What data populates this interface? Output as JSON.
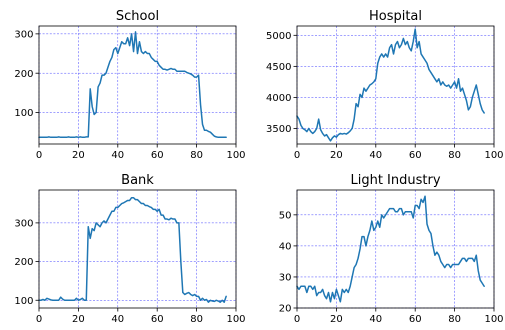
{
  "chart_data": [
    {
      "type": "line",
      "title": "School",
      "xlim": [
        0,
        100
      ],
      "ylim": [
        20,
        320
      ],
      "xticks": [
        0,
        20,
        40,
        60,
        80,
        100
      ],
      "yticks": [
        100,
        200,
        300
      ],
      "grid": true,
      "color": "#1f77b4",
      "x": [
        0,
        1,
        2,
        3,
        4,
        5,
        6,
        7,
        8,
        9,
        10,
        11,
        12,
        13,
        14,
        15,
        16,
        17,
        18,
        19,
        20,
        21,
        22,
        23,
        24,
        25,
        26,
        27,
        28,
        29,
        30,
        31,
        32,
        33,
        34,
        35,
        36,
        37,
        38,
        39,
        40,
        41,
        42,
        43,
        44,
        45,
        46,
        47,
        48,
        49,
        50,
        51,
        52,
        53,
        54,
        55,
        56,
        57,
        58,
        59,
        60,
        61,
        62,
        63,
        64,
        65,
        66,
        67,
        68,
        69,
        70,
        71,
        72,
        73,
        74,
        75,
        76,
        77,
        78,
        79,
        80,
        81,
        82,
        83,
        84,
        85,
        86,
        87,
        88,
        89,
        90,
        91,
        92,
        93,
        94,
        95
      ],
      "values": [
        37,
        37,
        37,
        37,
        37,
        38,
        37,
        37,
        37,
        37,
        38,
        37,
        37,
        37,
        37,
        38,
        37,
        37,
        37,
        38,
        37,
        38,
        37,
        37,
        38,
        38,
        160,
        115,
        95,
        100,
        165,
        175,
        195,
        195,
        200,
        215,
        230,
        240,
        260,
        265,
        250,
        265,
        280,
        275,
        275,
        290,
        270,
        300,
        255,
        305,
        250,
        280,
        255,
        250,
        255,
        250,
        250,
        240,
        235,
        230,
        230,
        220,
        215,
        210,
        210,
        208,
        210,
        212,
        210,
        210,
        205,
        205,
        205,
        205,
        205,
        202,
        200,
        198,
        195,
        190,
        190,
        195,
        120,
        70,
        55,
        55,
        52,
        50,
        45,
        40,
        38,
        37,
        37,
        37,
        37,
        37
      ]
    },
    {
      "type": "line",
      "title": "Hospital",
      "xlim": [
        0,
        100
      ],
      "ylim": [
        3250,
        5150
      ],
      "xticks": [
        0,
        20,
        40,
        60,
        80,
        100
      ],
      "yticks": [
        3500,
        4000,
        4500,
        5000
      ],
      "grid": true,
      "color": "#1f77b4",
      "x": [
        0,
        1,
        2,
        3,
        4,
        5,
        6,
        7,
        8,
        9,
        10,
        11,
        12,
        13,
        14,
        15,
        16,
        17,
        18,
        19,
        20,
        21,
        22,
        23,
        24,
        25,
        26,
        27,
        28,
        29,
        30,
        31,
        32,
        33,
        34,
        35,
        36,
        37,
        38,
        39,
        40,
        41,
        42,
        43,
        44,
        45,
        46,
        47,
        48,
        49,
        50,
        51,
        52,
        53,
        54,
        55,
        56,
        57,
        58,
        59,
        60,
        61,
        62,
        63,
        64,
        65,
        66,
        67,
        68,
        69,
        70,
        71,
        72,
        73,
        74,
        75,
        76,
        77,
        78,
        79,
        80,
        81,
        82,
        83,
        84,
        85,
        86,
        87,
        88,
        89,
        90,
        91,
        92,
        93,
        94,
        95
      ],
      "values": [
        3700,
        3650,
        3550,
        3500,
        3480,
        3450,
        3500,
        3450,
        3420,
        3450,
        3500,
        3650,
        3480,
        3420,
        3380,
        3400,
        3350,
        3300,
        3350,
        3380,
        3360,
        3400,
        3420,
        3410,
        3420,
        3410,
        3430,
        3460,
        3500,
        3650,
        3900,
        3850,
        4050,
        4000,
        4150,
        4100,
        4150,
        4200,
        4220,
        4250,
        4300,
        4550,
        4650,
        4700,
        4650,
        4700,
        4650,
        4800,
        4850,
        4700,
        4850,
        4900,
        4800,
        4850,
        4950,
        4850,
        4900,
        4800,
        4750,
        4900,
        5100,
        4800,
        4900,
        4700,
        4650,
        4600,
        4550,
        4450,
        4400,
        4350,
        4300,
        4250,
        4300,
        4200,
        4250,
        4200,
        4180,
        4200,
        4150,
        4200,
        4250,
        4150,
        4300,
        4100,
        4150,
        4050,
        3950,
        3800,
        3850,
        4000,
        4100,
        4200,
        4050,
        3900,
        3800,
        3750
      ]
    },
    {
      "type": "line",
      "title": "Bank",
      "xlim": [
        0,
        100
      ],
      "ylim": [
        80,
        385
      ],
      "xticks": [
        0,
        20,
        40,
        60,
        80,
        100
      ],
      "yticks": [
        100,
        200,
        300
      ],
      "grid": true,
      "color": "#1f77b4",
      "x": [
        0,
        1,
        2,
        3,
        4,
        5,
        6,
        7,
        8,
        9,
        10,
        11,
        12,
        13,
        14,
        15,
        16,
        17,
        18,
        19,
        20,
        21,
        22,
        23,
        24,
        25,
        26,
        27,
        28,
        29,
        30,
        31,
        32,
        33,
        34,
        35,
        36,
        37,
        38,
        39,
        40,
        41,
        42,
        43,
        44,
        45,
        46,
        47,
        48,
        49,
        50,
        51,
        52,
        53,
        54,
        55,
        56,
        57,
        58,
        59,
        60,
        61,
        62,
        63,
        64,
        65,
        66,
        67,
        68,
        69,
        70,
        71,
        72,
        73,
        74,
        75,
        76,
        77,
        78,
        79,
        80,
        81,
        82,
        83,
        84,
        85,
        86,
        87,
        88,
        89,
        90,
        91,
        92,
        93,
        94,
        95
      ],
      "values": [
        100,
        100,
        102,
        100,
        105,
        103,
        101,
        100,
        100,
        100,
        100,
        108,
        103,
        100,
        100,
        100,
        100,
        100,
        100,
        105,
        100,
        102,
        105,
        100,
        100,
        290,
        260,
        285,
        280,
        300,
        295,
        290,
        300,
        305,
        300,
        310,
        320,
        330,
        330,
        340,
        340,
        345,
        350,
        352,
        355,
        358,
        358,
        365,
        365,
        360,
        360,
        355,
        350,
        350,
        345,
        345,
        342,
        340,
        335,
        335,
        330,
        335,
        320,
        320,
        310,
        310,
        308,
        312,
        310,
        310,
        300,
        300,
        200,
        120,
        115,
        118,
        120,
        115,
        112,
        115,
        110,
        110,
        100,
        105,
        100,
        102,
        95,
        100,
        98,
        97,
        100,
        98,
        95,
        100,
        95,
        110
      ]
    },
    {
      "type": "line",
      "title": "Light Industry",
      "xlim": [
        0,
        100
      ],
      "ylim": [
        20,
        58
      ],
      "xticks": [
        0,
        20,
        40,
        60,
        80,
        100
      ],
      "yticks": [
        20,
        30,
        40,
        50
      ],
      "grid": true,
      "color": "#1f77b4",
      "x": [
        0,
        1,
        2,
        3,
        4,
        5,
        6,
        7,
        8,
        9,
        10,
        11,
        12,
        13,
        14,
        15,
        16,
        17,
        18,
        19,
        20,
        21,
        22,
        23,
        24,
        25,
        26,
        27,
        28,
        29,
        30,
        31,
        32,
        33,
        34,
        35,
        36,
        37,
        38,
        39,
        40,
        41,
        42,
        43,
        44,
        45,
        46,
        47,
        48,
        49,
        50,
        51,
        52,
        53,
        54,
        55,
        56,
        57,
        58,
        59,
        60,
        61,
        62,
        63,
        64,
        65,
        66,
        67,
        68,
        69,
        70,
        71,
        72,
        73,
        74,
        75,
        76,
        77,
        78,
        79,
        80,
        81,
        82,
        83,
        84,
        85,
        86,
        87,
        88,
        89,
        90,
        91,
        92,
        93,
        94,
        95
      ],
      "values": [
        27,
        26,
        27,
        27,
        27,
        25,
        27,
        27,
        26,
        27,
        24,
        25,
        25,
        26,
        24,
        23,
        25,
        22,
        25,
        23,
        26,
        24,
        22,
        26,
        25,
        26,
        25,
        27,
        30,
        33,
        34,
        36,
        39,
        43,
        43,
        40,
        43,
        45,
        48,
        45,
        46,
        48,
        46,
        50,
        49,
        50,
        51,
        52,
        52,
        52,
        51,
        51,
        52,
        52,
        50,
        51,
        51,
        51,
        51,
        49,
        53,
        53,
        52,
        55,
        54,
        56,
        47,
        45,
        44,
        40,
        37,
        38,
        37,
        35,
        34,
        33,
        34,
        34,
        33,
        34,
        34,
        34,
        34,
        35,
        36,
        36,
        35,
        36,
        36,
        36,
        35,
        37,
        32,
        29,
        28,
        27
      ]
    }
  ]
}
